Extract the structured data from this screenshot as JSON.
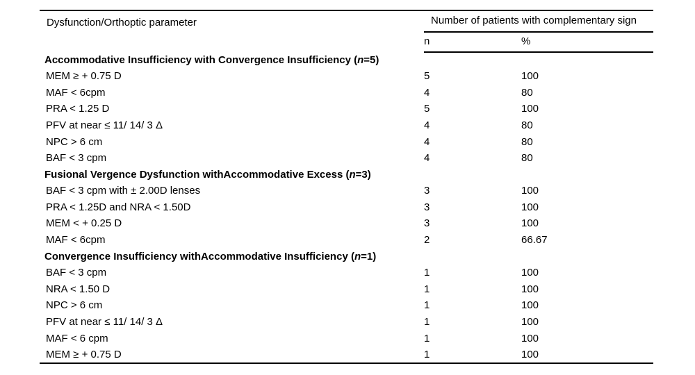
{
  "page": {
    "background": "#ffffff",
    "text_color": "#000000",
    "rule_color": "#000000"
  },
  "table": {
    "columns": {
      "parameter": "Dysfunction/Orthoptic parameter",
      "n": "n",
      "percent": "%"
    },
    "spanner": "Number of patients with complementary sign",
    "sections": [
      {
        "title": {
          "pre": "Accommodative Insufficiency with Convergence Insufficiency (",
          "italic": "n",
          "post": "=5)"
        },
        "rows": [
          {
            "param": "MEM ≥ + 0.75 D",
            "n": "5",
            "pct": "100"
          },
          {
            "param": "MAF < 6cpm",
            "n": "4",
            "pct": "80"
          },
          {
            "param": "PRA < 1.25 D",
            "n": "5",
            "pct": "100"
          },
          {
            "param": "PFV at near ≤ 11/ 14/ 3 Δ",
            "n": "4",
            "pct": "80"
          },
          {
            "param": "NPC > 6 cm",
            "n": "4",
            "pct": "80"
          },
          {
            "param": "BAF < 3 cpm",
            "n": "4",
            "pct": "80"
          }
        ]
      },
      {
        "title": {
          "pre": "Fusional Vergence Dysfunction withAccommodative Excess (",
          "italic": "n",
          "post": "=3)"
        },
        "rows": [
          {
            "param": "BAF < 3 cpm with ± 2.00D lenses",
            "n": "3",
            "pct": "100"
          },
          {
            "param": "PRA < 1.25D and NRA < 1.50D",
            "n": "3",
            "pct": "100"
          },
          {
            "param": "MEM < + 0.25 D",
            "n": "3",
            "pct": "100"
          },
          {
            "param": "MAF < 6cpm",
            "n": "2",
            "pct": "66.67"
          }
        ]
      },
      {
        "title": {
          "pre": "Convergence Insufficiency withAccommodative Insufficiency (",
          "italic": "n",
          "post": "=1)"
        },
        "rows": [
          {
            "param": "BAF < 3 cpm",
            "n": "1",
            "pct": "100"
          },
          {
            "param": "NRA < 1.50 D",
            "n": "1",
            "pct": "100"
          },
          {
            "param": "NPC > 6 cm",
            "n": "1",
            "pct": "100"
          },
          {
            "param": "PFV at near ≤ 11/ 14/ 3 Δ",
            "n": "1",
            "pct": "100"
          },
          {
            "param": "MAF < 6 cpm",
            "n": "1",
            "pct": "100"
          },
          {
            "param": "MEM ≥ + 0.75 D",
            "n": "1",
            "pct": "100"
          }
        ]
      }
    ]
  }
}
